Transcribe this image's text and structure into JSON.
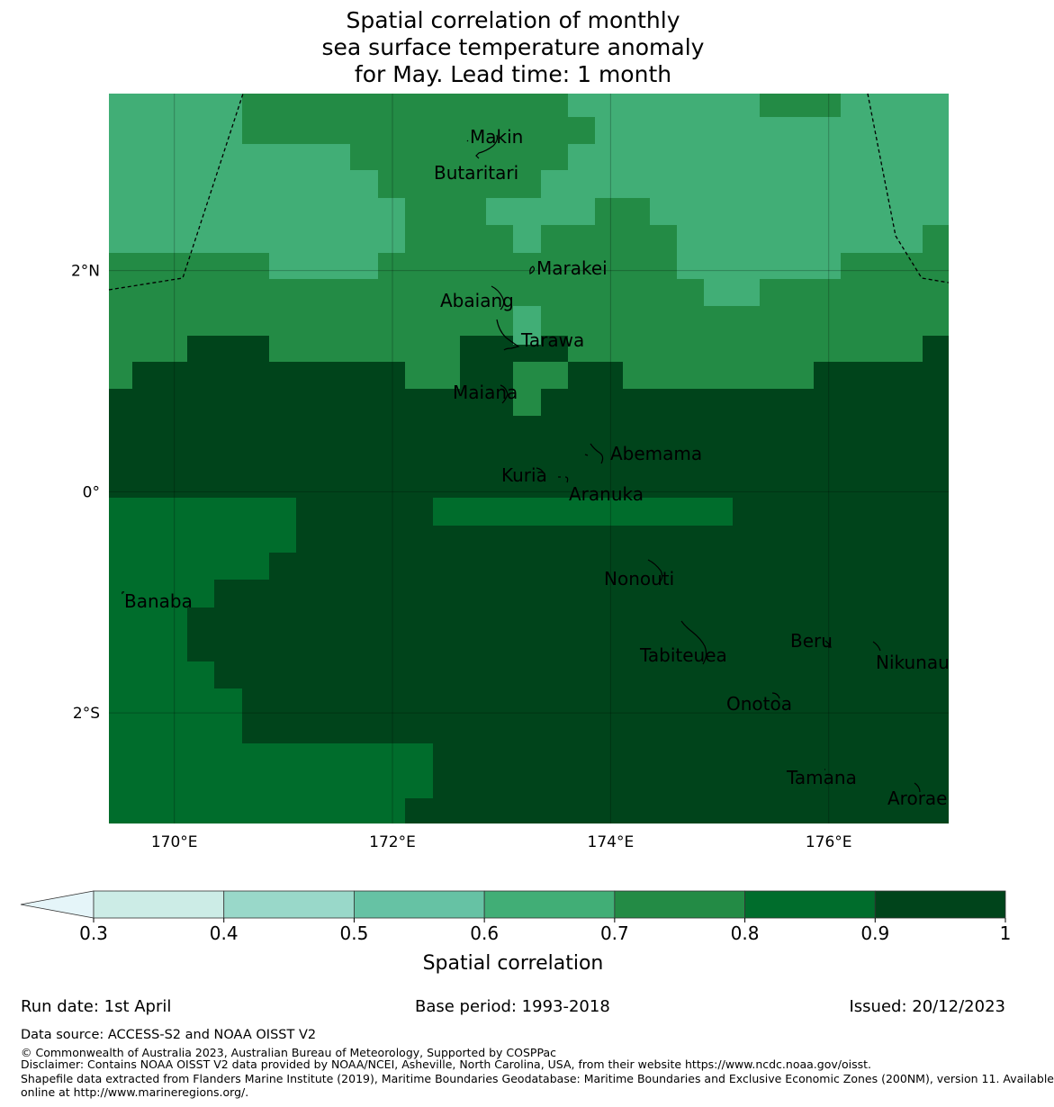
{
  "title": {
    "line1": "Spatial correlation of monthly",
    "line2": "sea surface temperature anomaly",
    "line3": "for May. Lead time: 1 month"
  },
  "map": {
    "lon_range": [
      169.4,
      177.1
    ],
    "lat_range": [
      -3.0,
      3.6
    ],
    "x_ticks": [
      {
        "value": 170,
        "label": "170°E"
      },
      {
        "value": 172,
        "label": "172°E"
      },
      {
        "value": 174,
        "label": "174°E"
      },
      {
        "value": 176,
        "label": "176°E"
      }
    ],
    "y_ticks": [
      {
        "value": 2,
        "label": "2°N"
      },
      {
        "value": 0,
        "label": "0°"
      },
      {
        "value": -2,
        "label": "2°S"
      }
    ],
    "places": [
      {
        "name": "Makin",
        "lon": 172.9,
        "lat": 3.1
      },
      {
        "name": "Butaritari",
        "lon": 172.8,
        "lat": 3.0
      },
      {
        "name": "Marakei",
        "lon": 173.3,
        "lat": 2.0
      },
      {
        "name": "Abaiang",
        "lon": 172.9,
        "lat": 1.8
      },
      {
        "name": "Tarawa",
        "lon": 173.0,
        "lat": 1.4
      },
      {
        "name": "Maiana",
        "lon": 173.0,
        "lat": 0.9
      },
      {
        "name": "Abemama",
        "lon": 173.9,
        "lat": 0.4
      },
      {
        "name": "Kuria",
        "lon": 173.4,
        "lat": 0.2
      },
      {
        "name": "Aranuka",
        "lon": 173.6,
        "lat": 0.2
      },
      {
        "name": "Nonouti",
        "lon": 174.4,
        "lat": -0.6
      },
      {
        "name": "Banaba",
        "lon": 169.5,
        "lat": -0.9
      },
      {
        "name": "Tabiteuea",
        "lon": 174.8,
        "lat": -1.3
      },
      {
        "name": "Beru",
        "lon": 176.0,
        "lat": -1.3
      },
      {
        "name": "Nikunau",
        "lon": 176.4,
        "lat": -1.35
      },
      {
        "name": "Onotoa",
        "lon": 175.55,
        "lat": -1.8
      },
      {
        "name": "Tamana",
        "lon": 175.98,
        "lat": -2.5
      },
      {
        "name": "Arorae",
        "lon": 176.82,
        "lat": -2.64
      }
    ]
  },
  "colorbar": {
    "label": "Spatial correlation",
    "ticks": [
      "0.3",
      "0.4",
      "0.5",
      "0.6",
      "0.7",
      "0.8",
      "0.9",
      "1"
    ],
    "extend_color": "#e5f5f9",
    "colors": [
      "#ccece6",
      "#99d8c9",
      "#66c2a4",
      "#41ae76",
      "#238b45",
      "#006d2c",
      "#00441b"
    ]
  },
  "footer": {
    "run_date": "Run date: 1st April",
    "base_period": "Base period: 1993-2018",
    "issued": "Issued: 20/12/2023",
    "data_source": "Data source: ACCESS-S2 and NOAA OISST V2",
    "copyright": "© Commonwealth of Australia 2023, Australian Bureau of Meteorology, Supported by COSPPac",
    "disclaimer": "Disclaimer: Contains NOAA OISST V2 data provided by NOAA/NCEI, Asheville, North Carolina, USA, from their website https://www.ncdc.noaa.gov/oisst.",
    "shapefile_1": "Shapefile data extracted from Flanders Marine Institute (2019), Maritime Boundaries Geodatabase: Maritime Boundaries and Exclusive Economic Zones (200NM), version 11. Available",
    "shapefile_2": "online at http://www.marineregions.org/."
  }
}
